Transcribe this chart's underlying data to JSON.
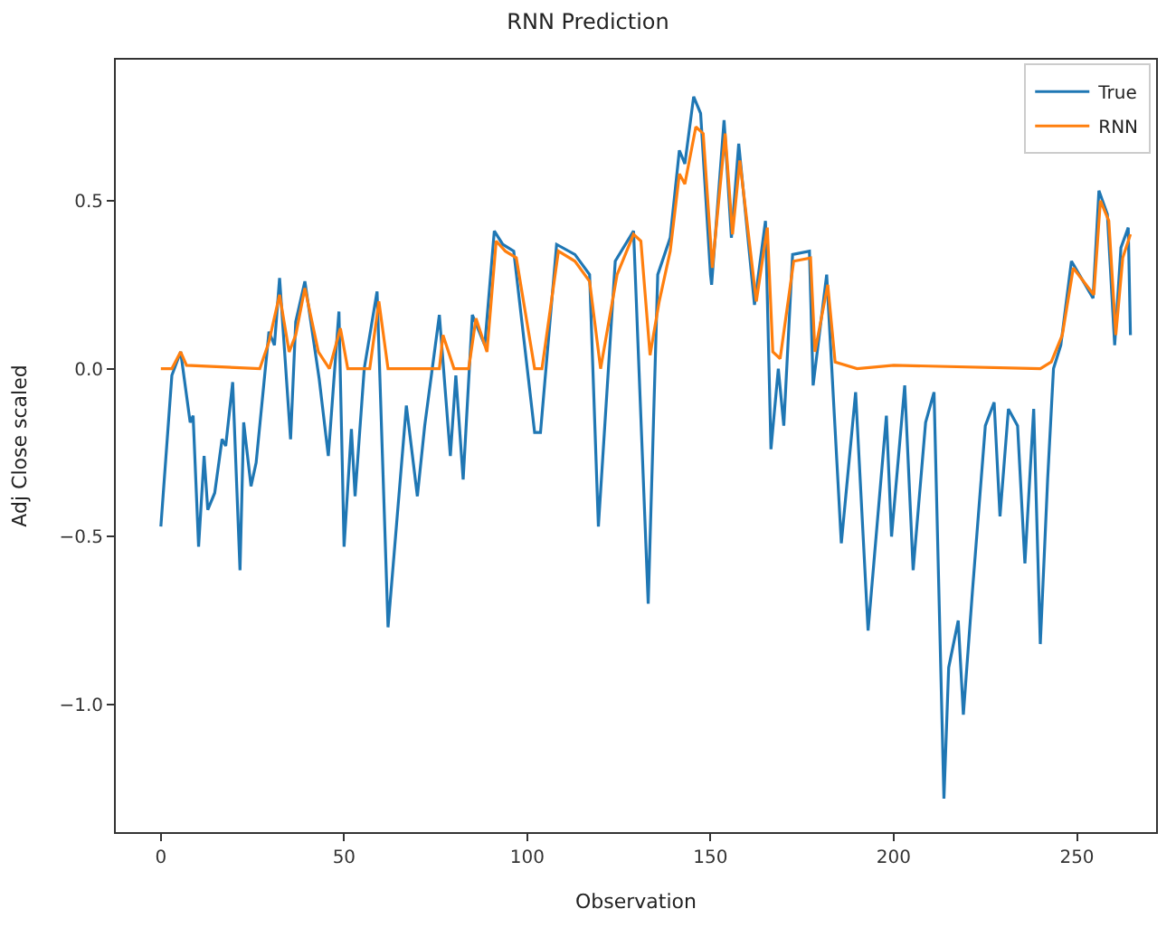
{
  "chart_data": {
    "type": "line",
    "title": "RNN Prediction",
    "xlabel": "Observation",
    "ylabel": "Adj Close scaled",
    "xlim": [
      -12.3,
      271.6
    ],
    "ylim": [
      -1.38,
      0.92
    ],
    "xticks": [
      0,
      50,
      100,
      150,
      200,
      250
    ],
    "yticks": [
      {
        "value": -1.0,
        "label": "−1.0"
      },
      {
        "value": -0.5,
        "label": "−0.5"
      },
      {
        "value": 0.0,
        "label": "0.0"
      },
      {
        "value": 0.5,
        "label": "0.5"
      }
    ],
    "grid": false,
    "legend": "top right",
    "marker": "none",
    "line_style": "solid",
    "series": [
      {
        "name": "True",
        "color": "#1f77b4",
        "x": [
          0,
          3,
          5.4,
          8,
          8.8,
          10.3,
          11.8,
          12.8,
          14.7,
          16.7,
          17.7,
          19.6,
          21.6,
          22.6,
          24.6,
          26,
          29.5,
          31,
          32.4,
          35.4,
          36.8,
          39.3,
          43.2,
          45.7,
          48.6,
          50,
          52,
          53,
          55.5,
          59,
          62,
          67,
          70,
          72,
          76,
          79,
          80.5,
          82.5,
          85,
          88.4,
          91,
          93.3,
          96.3,
          102,
          103.6,
          108,
          113,
          117,
          119.4,
          124,
          129,
          133,
          135.6,
          139,
          141.5,
          143,
          145.4,
          147.3,
          150,
          150.3,
          153.7,
          155.7,
          157.7,
          162,
          165,
          166.5,
          168.5,
          170,
          172.4,
          177,
          178,
          181.7,
          185.7,
          189.6,
          193,
          198,
          199.4,
          203,
          205.3,
          208.7,
          211,
          213.7,
          215,
          217.6,
          219,
          221.5,
          225,
          227.4,
          229,
          231.3,
          233.8,
          235.8,
          238.2,
          240,
          242,
          243.6,
          245.6,
          248.5,
          254.4,
          256,
          258.3,
          260.3,
          262,
          264,
          264.6
        ],
        "values": [
          -0.47,
          -0.02,
          0.05,
          -0.16,
          -0.14,
          -0.53,
          -0.26,
          -0.42,
          -0.37,
          -0.21,
          -0.23,
          -0.04,
          -0.6,
          -0.16,
          -0.35,
          -0.28,
          0.11,
          0.07,
          0.27,
          -0.21,
          0.14,
          0.26,
          -0.03,
          -0.26,
          0.17,
          -0.53,
          -0.18,
          -0.38,
          0.0,
          0.23,
          -0.77,
          -0.11,
          -0.38,
          -0.17,
          0.16,
          -0.26,
          -0.02,
          -0.33,
          0.16,
          0.07,
          0.41,
          0.37,
          0.35,
          -0.19,
          -0.19,
          0.37,
          0.34,
          0.28,
          -0.47,
          0.32,
          0.41,
          -0.7,
          0.28,
          0.39,
          0.65,
          0.61,
          0.81,
          0.76,
          0.28,
          0.25,
          0.74,
          0.39,
          0.67,
          0.19,
          0.44,
          -0.24,
          0.0,
          -0.17,
          0.34,
          0.35,
          -0.05,
          0.28,
          -0.52,
          -0.07,
          -0.78,
          -0.14,
          -0.5,
          -0.05,
          -0.6,
          -0.16,
          -0.07,
          -1.28,
          -0.89,
          -0.75,
          -1.03,
          -0.66,
          -0.17,
          -0.1,
          -0.44,
          -0.12,
          -0.17,
          -0.58,
          -0.12,
          -0.82,
          -0.33,
          0.0,
          0.07,
          0.32,
          0.21,
          0.53,
          0.46,
          0.07,
          0.36,
          0.42,
          0.1
        ]
      },
      {
        "name": "RNN",
        "color": "#ff7f0e",
        "x": [
          0,
          3,
          5.4,
          7,
          27,
          29.5,
          32.4,
          35,
          36.8,
          39.3,
          43,
          46,
          49,
          51,
          57,
          59.5,
          62,
          76,
          77,
          80,
          84,
          86,
          89,
          91.5,
          94,
          97,
          102,
          104,
          108.5,
          113,
          117,
          120,
          124.5,
          129,
          131,
          133.5,
          136,
          139,
          141.5,
          143,
          146,
          148,
          150.5,
          154,
          156,
          158,
          162.5,
          165.5,
          167,
          169,
          172.7,
          177.3,
          178.5,
          182,
          184,
          190,
          200,
          240,
          243,
          246,
          249,
          254.6,
          256.4,
          258.7,
          260.6,
          262.5,
          264.6
        ],
        "values": [
          0.0,
          0.0,
          0.05,
          0.01,
          0.0,
          0.08,
          0.22,
          0.05,
          0.1,
          0.24,
          0.05,
          0.0,
          0.12,
          0.0,
          0.0,
          0.2,
          0.0,
          0.0,
          0.1,
          0.0,
          0.0,
          0.15,
          0.05,
          0.38,
          0.35,
          0.33,
          0.0,
          0.0,
          0.35,
          0.32,
          0.26,
          0.0,
          0.28,
          0.4,
          0.38,
          0.04,
          0.2,
          0.35,
          0.58,
          0.55,
          0.72,
          0.7,
          0.3,
          0.7,
          0.4,
          0.62,
          0.2,
          0.42,
          0.05,
          0.03,
          0.32,
          0.33,
          0.05,
          0.25,
          0.02,
          0.0,
          0.01,
          0.0,
          0.02,
          0.1,
          0.3,
          0.22,
          0.5,
          0.44,
          0.1,
          0.33,
          0.4
        ]
      }
    ]
  }
}
